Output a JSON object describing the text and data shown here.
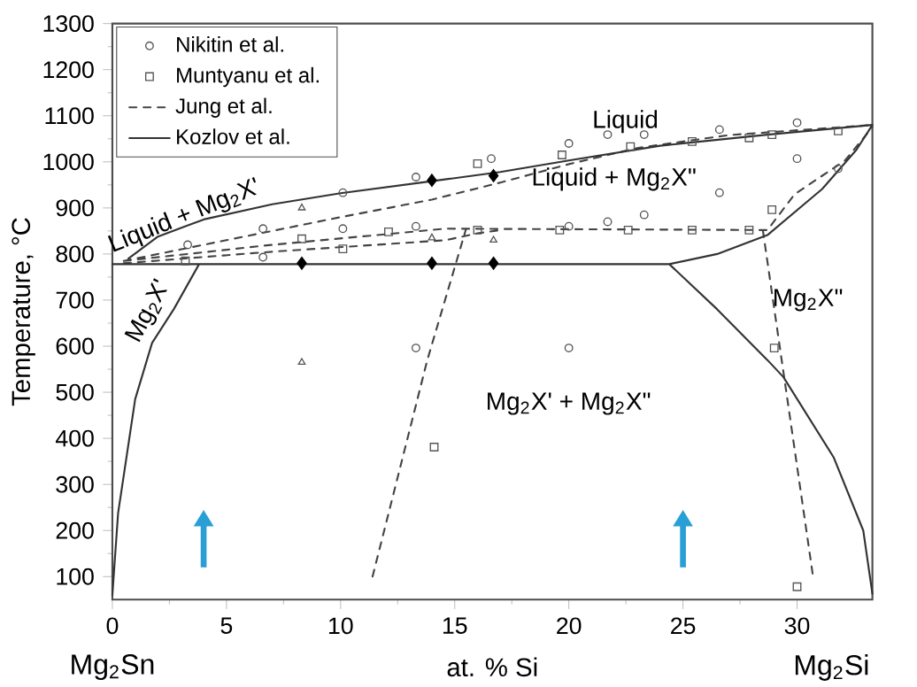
{
  "chart_data": {
    "type": "scatter",
    "xlabel": "at. % Si",
    "ylabel": "Temperature, °C",
    "xlim": [
      0,
      33.3
    ],
    "ylim": [
      50,
      1300
    ],
    "xticks": [
      0,
      5,
      10,
      15,
      20,
      25,
      30
    ],
    "yticks": [
      100,
      200,
      300,
      400,
      500,
      600,
      700,
      800,
      900,
      1000,
      1100,
      1200,
      1300
    ],
    "grid": false,
    "legend": "top left",
    "series": [
      {
        "name": "Nikitin et al.",
        "marker": "circle",
        "color": "#555555",
        "x": [
          3.3,
          6.6,
          6.6,
          10.1,
          10.1,
          13.3,
          13.3,
          13.3,
          16.6,
          20,
          21.7,
          23.3,
          26.6,
          30,
          30,
          31.8,
          26.6,
          23.3,
          21.7,
          20,
          20
        ],
        "values": [
          820,
          855,
          793,
          933,
          855,
          967,
          860,
          596,
          1007,
          1040,
          1059,
          1059,
          1070,
          1085,
          1007,
          985,
          933,
          885,
          870,
          860,
          596
        ]
      },
      {
        "name": "Muntyanu et al.",
        "marker": "square",
        "color": "#555555",
        "x": [
          3.2,
          8.3,
          10.1,
          12.1,
          16,
          19.7,
          22.7,
          25.4,
          27.9,
          28.9,
          31.8,
          16,
          19.6,
          22.6,
          25.4,
          27.9,
          28.9,
          29,
          30,
          14.1
        ],
        "values": [
          785,
          833,
          811,
          848,
          996,
          1015,
          1033,
          1044,
          1052,
          1059,
          1067,
          852,
          852,
          852,
          852,
          852,
          896,
          596,
          78,
          381
        ]
      },
      {
        "name": "Jung et al.",
        "type": "line",
        "line_style": "dashed",
        "marker": "none",
        "color": "#444444",
        "x": [
          0.5,
          5,
          10,
          14,
          17,
          20,
          23,
          27,
          33.3,
          null,
          0.5,
          7,
          14.6,
          28.7,
          29.9,
          32.1,
          33.3,
          null,
          0.5,
          7,
          14.6,
          16,
          17,
          null,
          11.4,
          13.8,
          15.5,
          null,
          28.5,
          30.7
        ],
        "values": [
          785,
          830,
          880,
          918,
          955,
          995,
          1030,
          1058,
          1080,
          null,
          785,
          820,
          855,
          852,
          930,
          1003,
          1075,
          null,
          780,
          805,
          830,
          845,
          852,
          null,
          100,
          570,
          855,
          null,
          852,
          100
        ]
      },
      {
        "name": "Kozlov et al.",
        "type": "line",
        "line_style": "solid",
        "marker": "none",
        "color": "#333333",
        "x": [
          0.7,
          2,
          4,
          7,
          10,
          14,
          17,
          20,
          24,
          28.7,
          33.3,
          null,
          0,
          24.4,
          null,
          24.4,
          26.5,
          28.7,
          31.1,
          32.6,
          33.3,
          null,
          24.4,
          26.5,
          28.7,
          29.4,
          31.6,
          32.9,
          33.3,
          null,
          0,
          0.25,
          1.0,
          1.74,
          2.7,
          3.8
        ],
        "values": [
          790,
          838,
          875,
          908,
          932,
          958,
          978,
          1003,
          1035,
          1059,
          1080,
          null,
          778,
          778,
          null,
          778,
          800,
          841,
          941,
          1026,
          1080,
          null,
          778,
          680,
          570,
          533,
          359,
          200,
          63,
          null,
          60,
          237,
          485,
          607,
          681,
          778
        ]
      },
      {
        "marker": "diamond",
        "color": "#000000",
        "x": [
          14,
          16.7,
          14,
          16.7,
          8.3
        ],
        "values": [
          960,
          970,
          780,
          780,
          780
        ]
      },
      {
        "marker": "triangle",
        "color": "#555555",
        "x": [
          8.3,
          8.3,
          14,
          16.7
        ],
        "values": [
          900,
          565,
          835,
          830
        ]
      }
    ],
    "annotations": [
      "Liquid",
      "Liquid + Mg$_{2}$X\"",
      "Liquid + Mg$_{2}$X'",
      "Mg$_{2}$X'",
      "Mg$_{2}$X\"",
      "Mg$_{2}$X' + Mg$_{2}$X\"",
      "Mg$_{2}$Sn",
      "Mg$_{2}$Si"
    ]
  }
}
